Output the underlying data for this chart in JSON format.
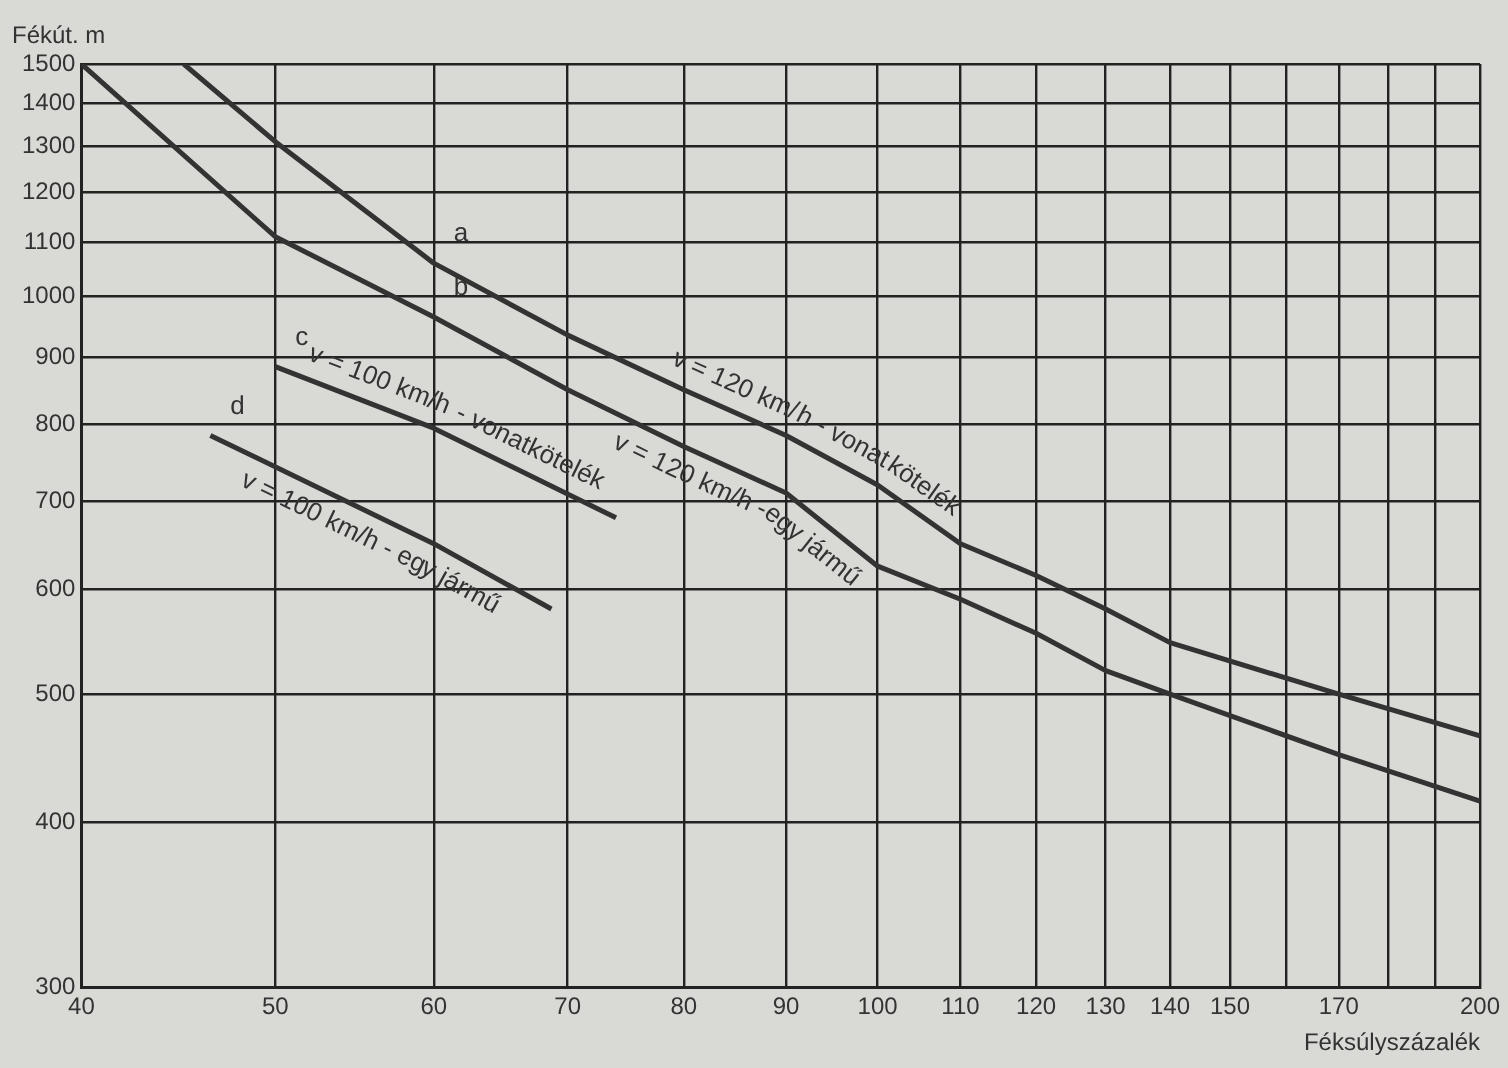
{
  "chart_data": {
    "type": "line",
    "xlabel": "Féksúlyszázalék",
    "ylabel": "Fékút. m",
    "log": "xy",
    "grid": true,
    "legend": false,
    "marker": "none",
    "line_style": "solid",
    "xlim": [
      40,
      200
    ],
    "ylim": [
      300,
      1500
    ],
    "xticks": [
      40,
      50,
      60,
      70,
      80,
      90,
      100,
      110,
      120,
      130,
      140,
      150,
      {
        "value": 160,
        "label": null
      },
      170,
      {
        "value": 180,
        "label": null
      },
      {
        "value": 190,
        "label": null
      },
      200
    ],
    "yticks": [
      300,
      400,
      500,
      600,
      700,
      800,
      900,
      1000,
      1100,
      1200,
      1300,
      1400,
      1500
    ],
    "series": [
      {
        "name": "v = 120 km/h - vonatkötelék",
        "color": "#333333",
        "x": [
          45,
          50,
          60,
          70,
          80,
          90,
          100,
          110,
          120,
          130,
          140,
          170,
          200
        ],
        "values": [
          1500,
          1310,
          1060,
          935,
          850,
          785,
          720,
          650,
          615,
          580,
          547,
          500,
          465
        ]
      },
      {
        "name": "v = 120 km/h - egy jármű",
        "color": "#333333",
        "x": [
          40,
          50,
          60,
          70,
          80,
          90,
          100,
          110,
          120,
          130,
          140,
          170,
          200
        ],
        "values": [
          1500,
          1110,
          965,
          850,
          770,
          710,
          625,
          590,
          556,
          521,
          500,
          450,
          415
        ]
      },
      {
        "name": "v = 100 km/h - vonatkötelék",
        "color": "#333333",
        "x": [
          50,
          60,
          74
        ],
        "values": [
          885,
          795,
          680
        ]
      },
      {
        "name": "v = 100 km/h - egy jármű",
        "color": "#333333",
        "x": [
          46.4,
          60,
          68.7
        ],
        "values": [
          785,
          650,
          580
        ]
      }
    ],
    "annotations": [
      {
        "text": "a",
        "x": 60,
        "y": 1060
      },
      {
        "text": "b",
        "x": 60,
        "y": 965
      },
      {
        "text": "c",
        "x": 50,
        "y": 885
      },
      {
        "text": "d",
        "x": 46.4,
        "y": 785
      }
    ]
  }
}
